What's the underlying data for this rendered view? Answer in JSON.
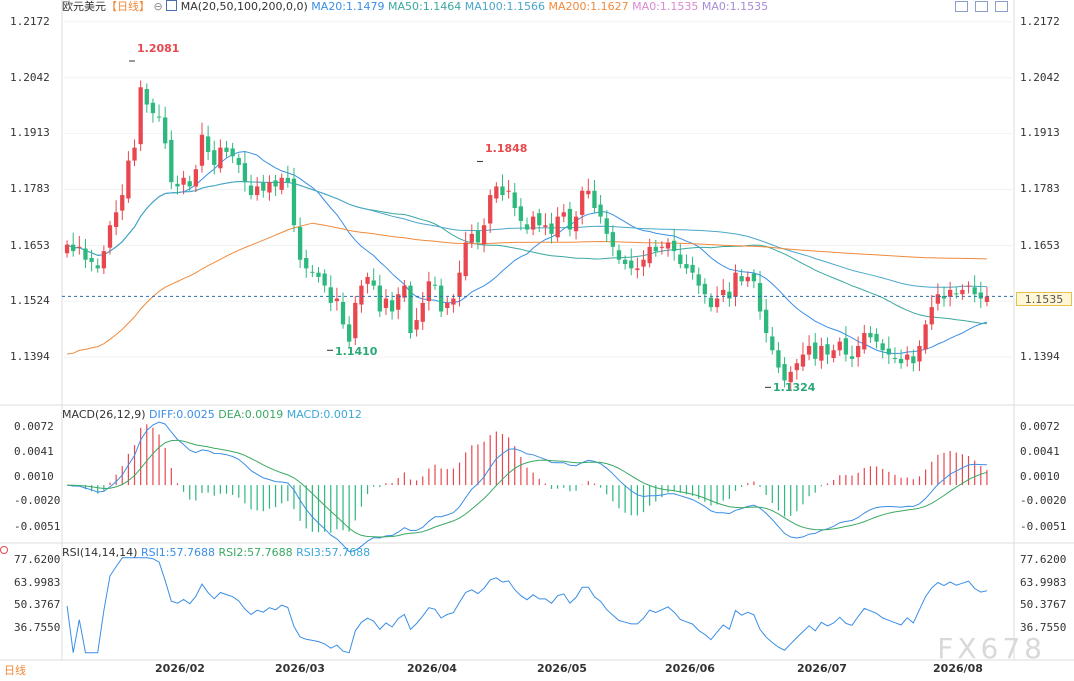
{
  "header": {
    "symbol": "欧元美元",
    "period": "【日线】",
    "circle_glyph": "⊖",
    "ma_label": "MA(20,50,100,200,0,0)",
    "ma": [
      {
        "text": "MA20:1.1479",
        "color": "#3a8ee6"
      },
      {
        "text": "MA50:1.1464",
        "color": "#3aa8a0"
      },
      {
        "text": "MA100:1.1566",
        "color": "#4aa7c9"
      },
      {
        "text": "MA200:1.1627",
        "color": "#f08a3c"
      },
      {
        "text": "MA0:1.1535",
        "color": "#d88ad0"
      },
      {
        "text": "MA0:1.1535",
        "color": "#a88ad8"
      }
    ]
  },
  "price_axis": {
    "ticks": [
      "1.2172",
      "1.2042",
      "1.1913",
      "1.1783",
      "1.1653",
      "1.1524",
      "1.1394"
    ]
  },
  "current_price": {
    "value": "1.1535"
  },
  "annotations": [
    {
      "text": "1.2081",
      "color": "#e5484d"
    },
    {
      "text": "1.1848",
      "color": "#e5484d"
    },
    {
      "text": "1.1410",
      "color": "#2aa876"
    },
    {
      "text": "1.1324",
      "color": "#2aa876"
    }
  ],
  "macd": {
    "label": "MACD(26,12,9)",
    "diff": "DIFF:0.0025",
    "dea": "DEA:0.0019",
    "macd": "MACD:0.0012",
    "ticks": [
      "0.0072",
      "0.0041",
      "0.0010",
      "-0.0020",
      "-0.0051"
    ]
  },
  "rsi": {
    "label": "RSI(14,14,14)",
    "rsi1": "RSI1:57.7688",
    "rsi2": "RSI2:57.7688",
    "rsi3": "RSI3:57.7688",
    "ticks": [
      "77.6200",
      "63.9983",
      "50.3767",
      "36.7550"
    ]
  },
  "footer": {
    "period_tag": "日线",
    "x_ticks": [
      "2026/02",
      "2026/03",
      "2026/04",
      "2026/05",
      "2026/06",
      "2026/07",
      "2026/08"
    ]
  },
  "watermark": "FX678",
  "colors": {
    "up": "#e8474f",
    "down": "#2db87d",
    "diff": "#3a8ee6",
    "dea": "#3aa864"
  },
  "chart_data": [
    {
      "type": "candlestick",
      "ylim": [
        1.129,
        1.219
      ],
      "x_ticks": [
        "2026/02",
        "2026/03",
        "2026/04",
        "2026/05",
        "2026/06",
        "2026/07",
        "2026/08"
      ],
      "current_price": 1.1535,
      "highs_marked": [
        1.2081,
        1.1848
      ],
      "lows_marked": [
        1.141,
        1.1324
      ],
      "close": [
        1.1655,
        1.164,
        1.165,
        1.162,
        1.1615,
        1.16,
        1.164,
        1.17,
        1.173,
        1.177,
        1.185,
        1.188,
        1.202,
        1.198,
        1.196,
        1.195,
        1.189,
        1.18,
        1.179,
        1.181,
        1.179,
        1.183,
        1.191,
        1.187,
        1.184,
        1.188,
        1.187,
        1.186,
        1.184,
        1.18,
        1.177,
        1.179,
        1.178,
        1.18,
        1.179,
        1.181,
        1.18,
        1.17,
        1.162,
        1.16,
        1.159,
        1.158,
        1.156,
        1.152,
        1.153,
        1.147,
        1.143,
        1.152,
        1.156,
        1.158,
        1.156,
        1.15,
        1.153,
        1.15,
        1.154,
        1.156,
        1.145,
        1.148,
        1.152,
        1.157,
        1.156,
        1.15,
        1.152,
        1.153,
        1.159,
        1.166,
        1.168,
        1.166,
        1.17,
        1.177,
        1.179,
        1.177,
        1.178,
        1.174,
        1.171,
        1.169,
        1.172,
        1.17,
        1.17,
        1.168,
        1.172,
        1.173,
        1.169,
        1.172,
        1.178,
        1.178,
        1.174,
        1.172,
        1.168,
        1.165,
        1.162,
        1.161,
        1.16,
        1.16,
        1.162,
        1.165,
        1.164,
        1.165,
        1.166,
        1.164,
        1.161,
        1.16,
        1.159,
        1.156,
        1.154,
        1.151,
        1.153,
        1.155,
        1.153,
        1.159,
        1.157,
        1.158,
        1.157,
        1.15,
        1.145,
        1.141,
        1.137,
        1.134,
        1.136,
        1.138,
        1.14,
        1.142,
        1.139,
        1.142,
        1.14,
        1.141,
        1.143,
        1.14,
        1.139,
        1.142,
        1.145,
        1.144,
        1.143,
        1.141,
        1.14,
        1.139,
        1.138,
        1.14,
        1.138,
        1.142,
        1.147,
        1.151,
        1.154,
        1.153,
        1.155,
        1.154,
        1.155,
        1.156,
        1.154,
        1.153,
        1.1535
      ]
    },
    {
      "type": "line",
      "title": "MACD(26,12,9)",
      "series": [
        {
          "name": "DIFF",
          "last": 0.0025
        },
        {
          "name": "DEA",
          "last": 0.0019
        },
        {
          "name": "MACD",
          "last": 0.0012
        }
      ],
      "ylim": [
        -0.0065,
        0.008
      ]
    },
    {
      "type": "line",
      "title": "RSI(14,14,14)",
      "series": [
        {
          "name": "RSI1",
          "last": 57.7688
        },
        {
          "name": "RSI2",
          "last": 57.7688
        },
        {
          "name": "RSI3",
          "last": 57.7688
        }
      ],
      "ylim": [
        20,
        80
      ]
    }
  ]
}
